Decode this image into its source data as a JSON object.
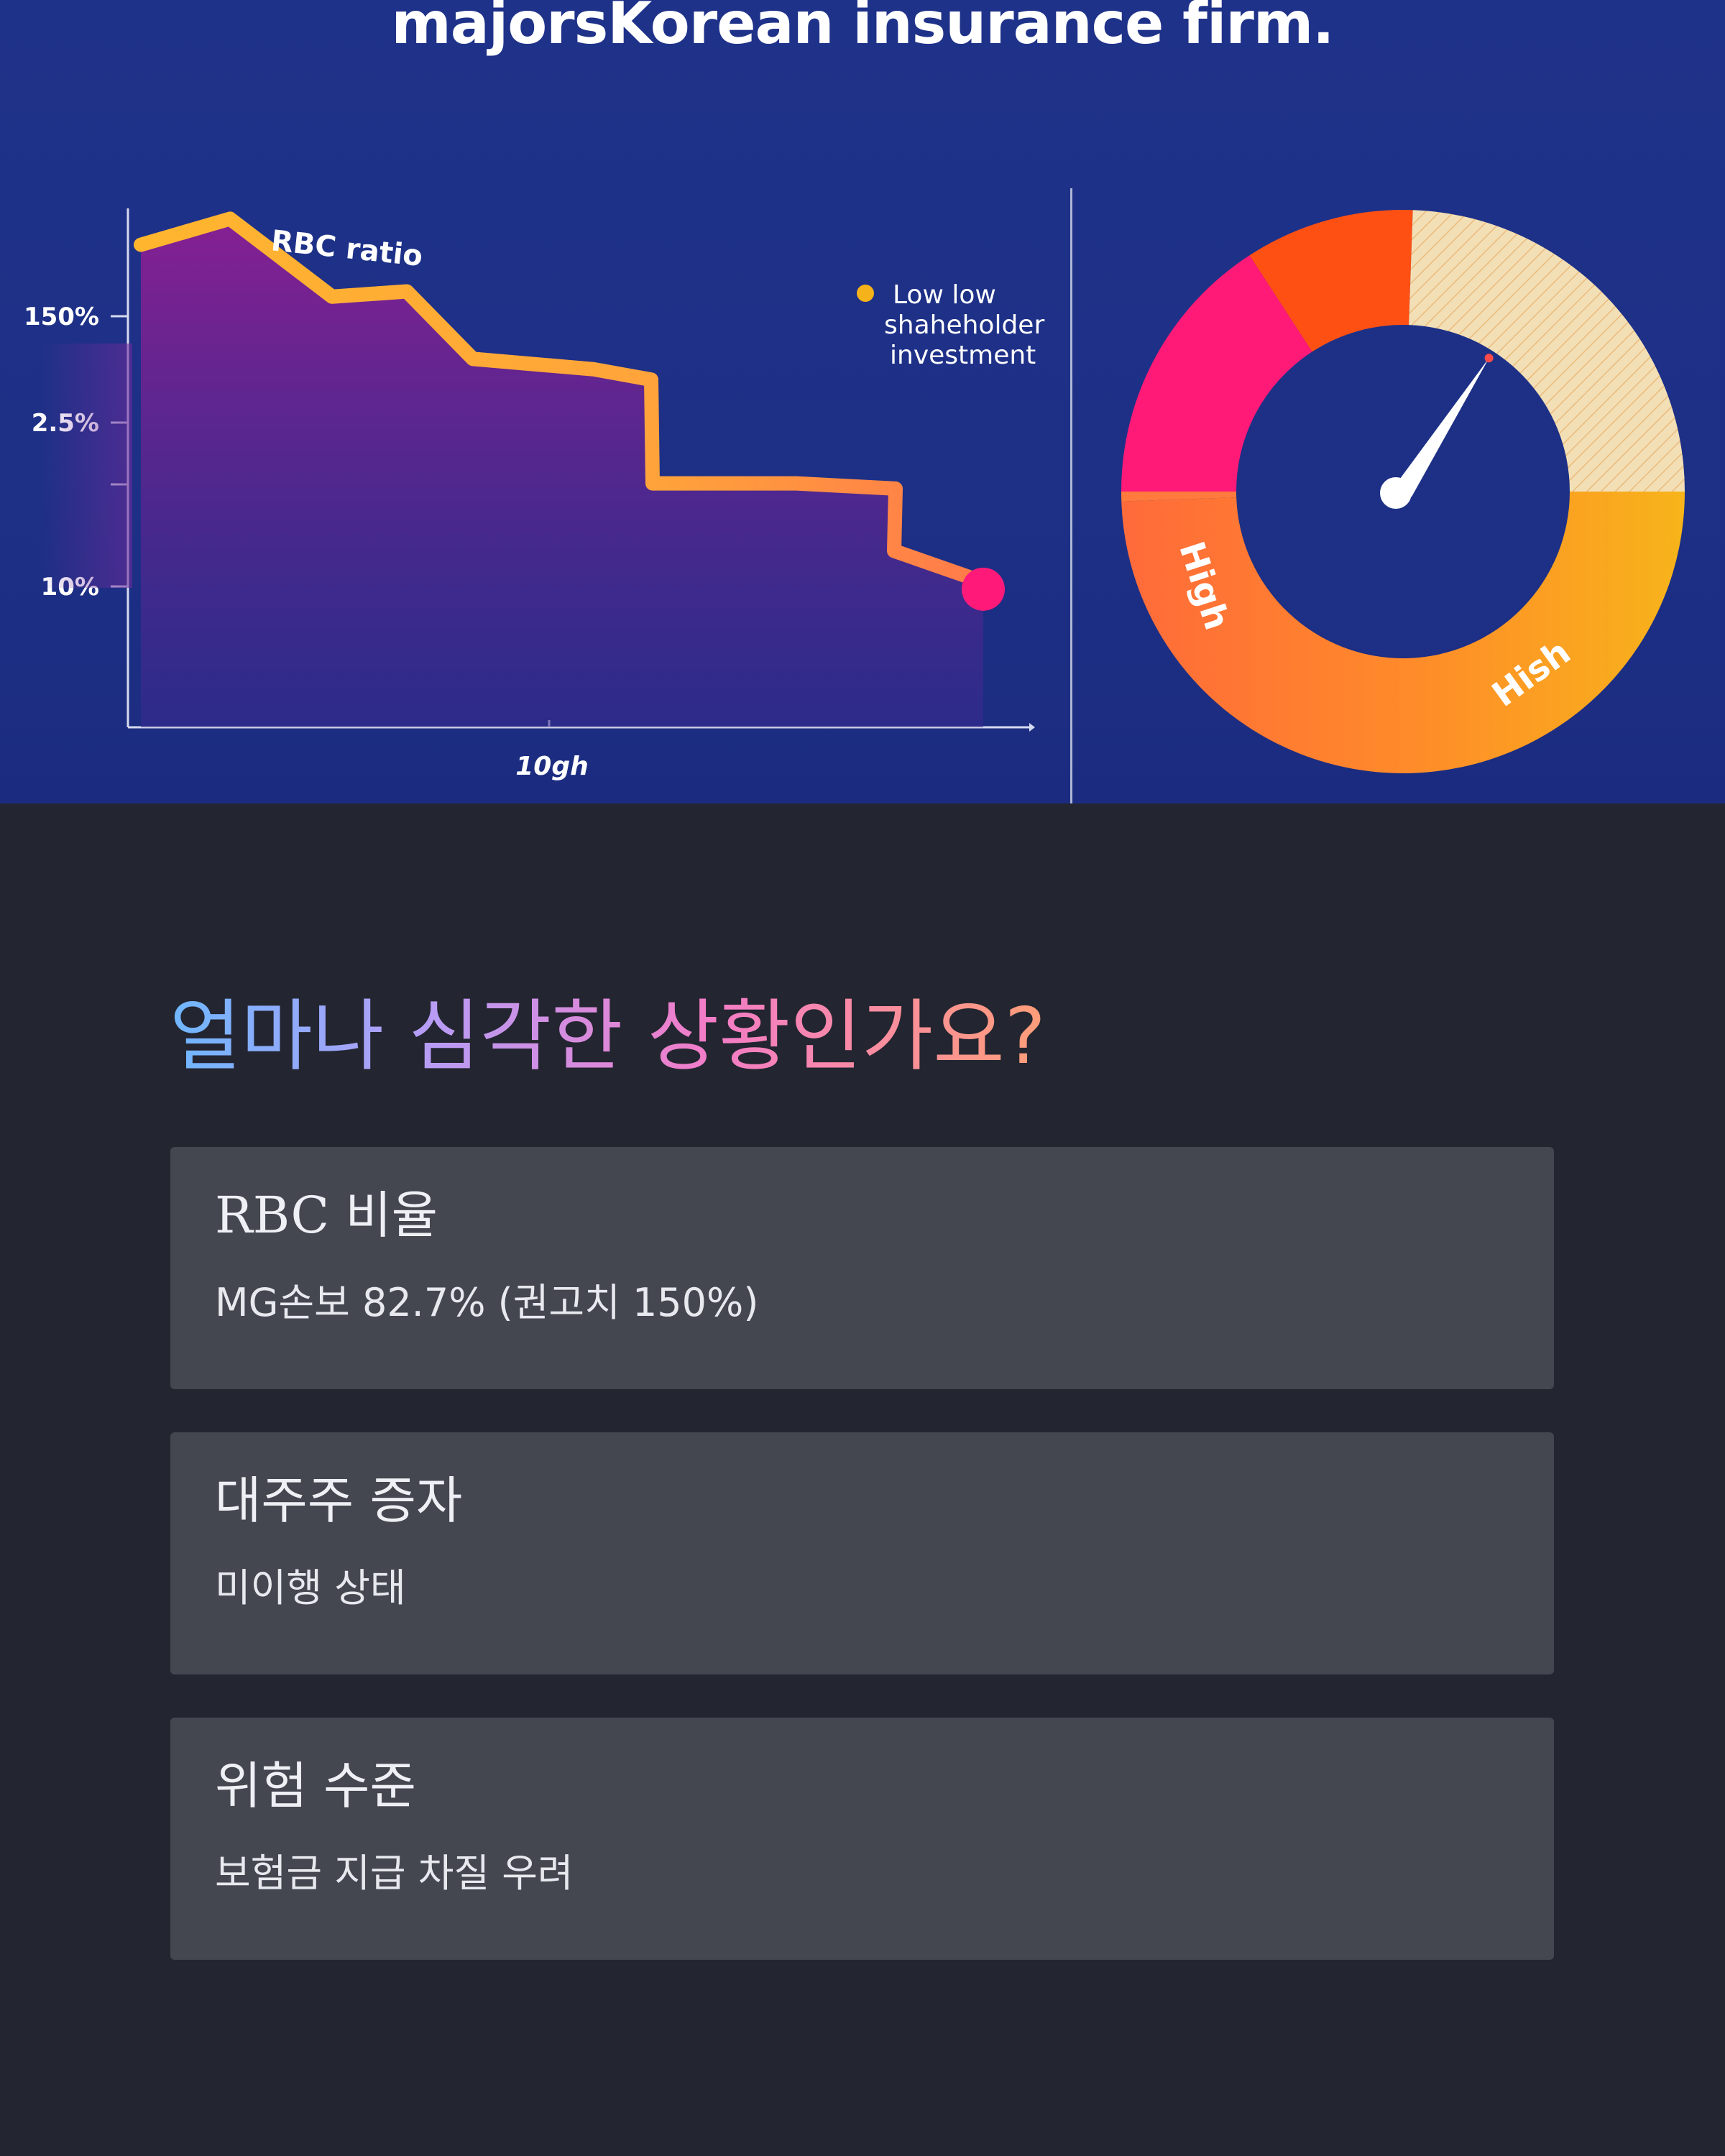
{
  "hero": {
    "title": "majorsKorean insurance firm."
  },
  "chart_data": [
    {
      "type": "area",
      "title": "RBC ratio",
      "xlabel": "10gh",
      "ylabel": "",
      "y_tick_labels": [
        "150%",
        "2.5%",
        "10%"
      ],
      "legend": [
        "Low low",
        "shaheholder",
        "investment"
      ],
      "legend_placement": "top-right",
      "colors": {
        "line_start": "#ffb62e",
        "line_end": "#ff7a4a",
        "fill_top": "#8c1f93",
        "fill_bottom": "#3a2a8f",
        "end_marker": "#ff1a7a",
        "legend_dot": "#f5b21a"
      },
      "series": [
        {
          "values": [
            0.93,
            0.98,
            0.83,
            0.84,
            0.71,
            0.69,
            0.67,
            0.47,
            0.47,
            0.46,
            0.34,
            0.28
          ]
        }
      ]
    },
    {
      "type": "gauge",
      "labels": [
        "High",
        "Hish"
      ],
      "needle_value": 0.62,
      "segments": [
        {
          "color": "#ff7a3c",
          "share": 0.25
        },
        {
          "color": "#ff1a78",
          "share": 0.125
        },
        {
          "color": "#ff5014",
          "share": 0.083
        },
        {
          "color": "#f0d9a8",
          "share": 0.167
        },
        {
          "color": "#f7b41a",
          "share": 0.375
        }
      ]
    }
  ],
  "section": {
    "heading": "얼마나 심각한 상황인가요?"
  },
  "cards": [
    {
      "title": "RBC 비율",
      "desc": "MG손보 82.7% (권고치 150%)"
    },
    {
      "title": "대주주 증자",
      "desc": "미이행 상태"
    },
    {
      "title": "위험 수준",
      "desc": "보험금 지급 차질 우려"
    }
  ]
}
